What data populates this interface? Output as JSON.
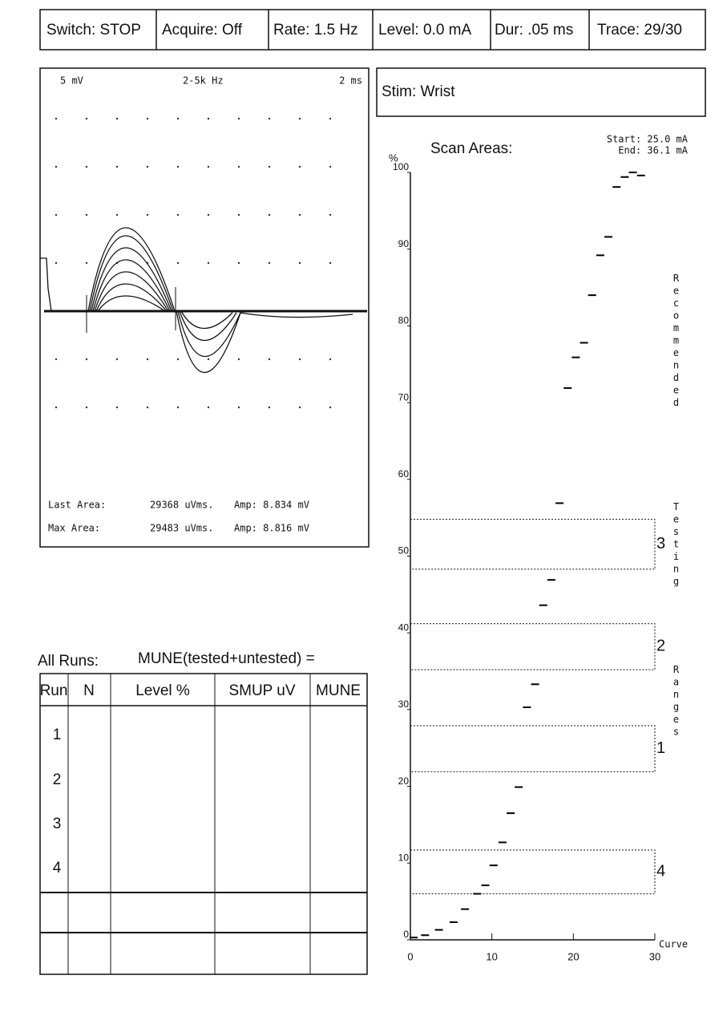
{
  "header": {
    "cells": [
      "Switch: STOP",
      "Acquire: Off",
      "Rate: 1.5 Hz",
      "Level: 0.0 mA",
      "Dur: .05 ms",
      "Trace: 29/30"
    ],
    "stim": "Stim: Wrist"
  },
  "waveform": {
    "scale": "5 mV",
    "filter": "2-5k Hz",
    "sweep": "2 ms",
    "last_area": {
      "label": "Last Area:",
      "area": "29368 uVms.",
      "amp": "Amp: 8.834 mV"
    },
    "max_area": {
      "label": "Max Area:",
      "area": "29483 uVms.",
      "amp": "Amp: 8.816 mV"
    }
  },
  "runs": {
    "title": "All Runs:",
    "formula": "MUNE(tested+untested) =",
    "columns": [
      "Run",
      "N",
      "Level %",
      "SMUP uV",
      "MUNE"
    ],
    "rows": [
      "1",
      "2",
      "3",
      "4"
    ]
  },
  "chart_data": {
    "type": "scatter",
    "title": "Scan Areas:",
    "y_unit": "%",
    "start": "Start: 25.0 mA",
    "end": "End: 36.1 mA",
    "xlabel": "Curve",
    "x": [
      0.4,
      1.8,
      3.5,
      5.3,
      6.7,
      8.2,
      9.2,
      10.2,
      11.3,
      12.3,
      13.3,
      14.3,
      15.3,
      16.3,
      17.3,
      18.3,
      19.3,
      20.3,
      21.3,
      22.3,
      23.3,
      24.3,
      25.3,
      26.3,
      27.3,
      28.3
    ],
    "values": [
      0.3,
      0.6,
      1.3,
      2.3,
      4.0,
      6.0,
      7.1,
      9.7,
      12.7,
      16.5,
      19.9,
      30.3,
      33.3,
      43.6,
      46.9,
      56.9,
      71.9,
      75.9,
      77.8,
      84.0,
      89.2,
      91.6,
      98.1,
      99.4,
      100,
      99.6
    ],
    "ranges": [
      {
        "label": "3",
        "from": 48.3,
        "to": 54.8
      },
      {
        "label": "2",
        "from": 35.2,
        "to": 41.2
      },
      {
        "label": "1",
        "from": 21.9,
        "to": 27.9
      },
      {
        "label": "4",
        "from": 6.0,
        "to": 11.7
      }
    ],
    "side_label": [
      "Recommended",
      "Testing",
      "Ranges"
    ],
    "xlim": [
      0,
      30
    ],
    "ylim": [
      0,
      100
    ],
    "xticks": [
      0,
      10,
      20,
      30
    ],
    "yticks": [
      0,
      10,
      20,
      30,
      40,
      50,
      60,
      70,
      80,
      90,
      100
    ],
    "color": "#000000"
  }
}
